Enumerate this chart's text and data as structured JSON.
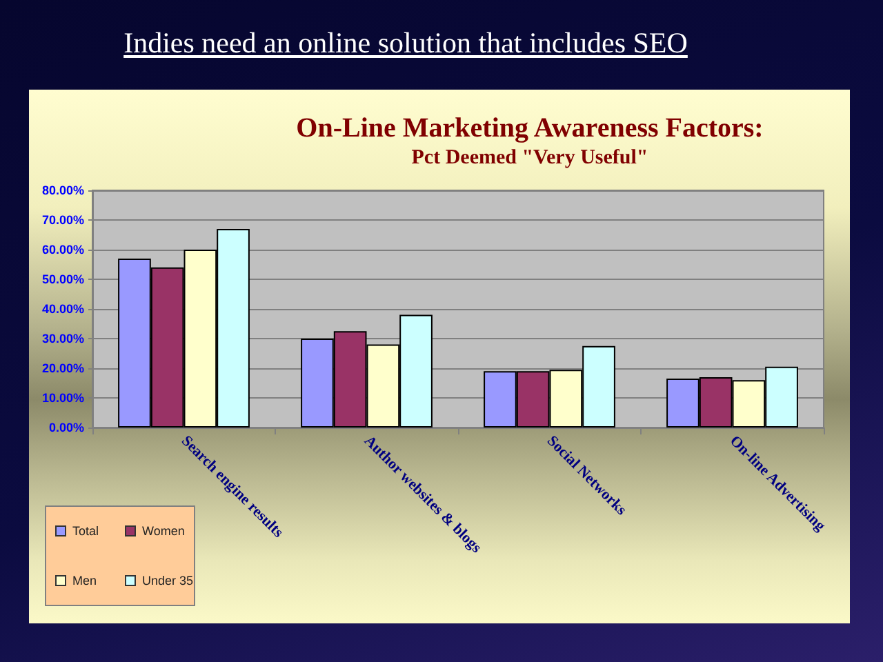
{
  "chart_data": {
    "type": "bar",
    "title": "On-Line Marketing Awareness Factors:",
    "subtitle": "Pct Deemed \"Very Useful\"",
    "annotations": [
      "Indies need an online solution that includes SEO"
    ],
    "categories": [
      "Search engine results",
      "Author websites & blogs",
      "Social Networks",
      "On-line Advertising"
    ],
    "series": [
      {
        "name": "Total",
        "color": "#9999ff",
        "values": [
          57,
          30,
          19,
          16.5
        ]
      },
      {
        "name": "Women",
        "color": "#993366",
        "values": [
          54,
          32.5,
          19,
          17
        ]
      },
      {
        "name": "Men",
        "color": "#ffffcc",
        "values": [
          60,
          28,
          19.5,
          16
        ]
      },
      {
        "name": "Under 35",
        "color": "#ccffff",
        "values": [
          67,
          38,
          27.5,
          20.5
        ]
      }
    ],
    "ylim": [
      0,
      80
    ],
    "yticks": [
      {
        "value": 0,
        "label": "0.00%"
      },
      {
        "value": 10,
        "label": "10.00%"
      },
      {
        "value": 20,
        "label": "20.00%"
      },
      {
        "value": 30,
        "label": "30.00%"
      },
      {
        "value": 40,
        "label": "40.00%"
      },
      {
        "value": 50,
        "label": "50.00%"
      },
      {
        "value": 60,
        "label": "60.00%"
      },
      {
        "value": 70,
        "label": "70.00%"
      },
      {
        "value": 80,
        "label": "80.00%"
      }
    ],
    "grid": "y",
    "legend": "bottom left"
  }
}
